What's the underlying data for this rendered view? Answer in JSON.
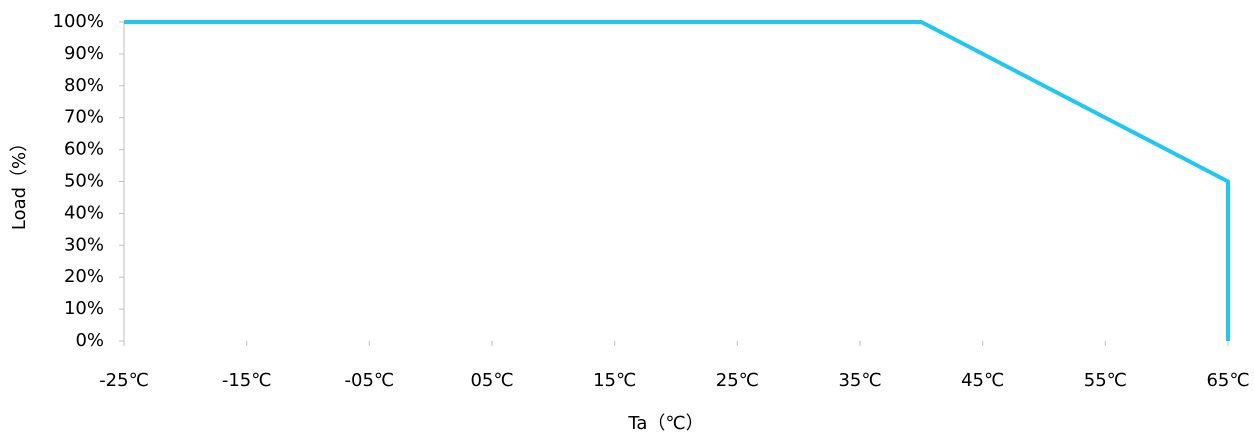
{
  "chart_data": {
    "type": "line",
    "x_label": "Ta（℃）",
    "y_label": "Load（%）",
    "x": [
      -25,
      40,
      65,
      65
    ],
    "series": [
      {
        "name": "Load",
        "color": "#1ec8f0",
        "values": [
          100,
          100,
          50,
          0
        ]
      }
    ],
    "xlim": [
      -25,
      65
    ],
    "ylim": [
      0,
      100
    ],
    "xticks": [
      {
        "value": -25,
        "label": "-25℃"
      },
      {
        "value": -15,
        "label": "-15℃"
      },
      {
        "value": -5,
        "label": "-05℃"
      },
      {
        "value": 5,
        "label": "05℃"
      },
      {
        "value": 15,
        "label": "15℃"
      },
      {
        "value": 25,
        "label": "25℃"
      },
      {
        "value": 35,
        "label": "35℃"
      },
      {
        "value": 45,
        "label": "45℃"
      },
      {
        "value": 55,
        "label": "55℃"
      },
      {
        "value": 65,
        "label": "65℃"
      }
    ],
    "yticks": [
      {
        "value": 0,
        "label": "0%"
      },
      {
        "value": 10,
        "label": "10%"
      },
      {
        "value": 20,
        "label": "20%"
      },
      {
        "value": 30,
        "label": "30%"
      },
      {
        "value": 40,
        "label": "40%"
      },
      {
        "value": 50,
        "label": "50%"
      },
      {
        "value": 60,
        "label": "60%"
      },
      {
        "value": 70,
        "label": "70%"
      },
      {
        "value": 80,
        "label": "80%"
      },
      {
        "value": 90,
        "label": "90%"
      },
      {
        "value": 100,
        "label": "100%"
      }
    ],
    "grid": false
  }
}
